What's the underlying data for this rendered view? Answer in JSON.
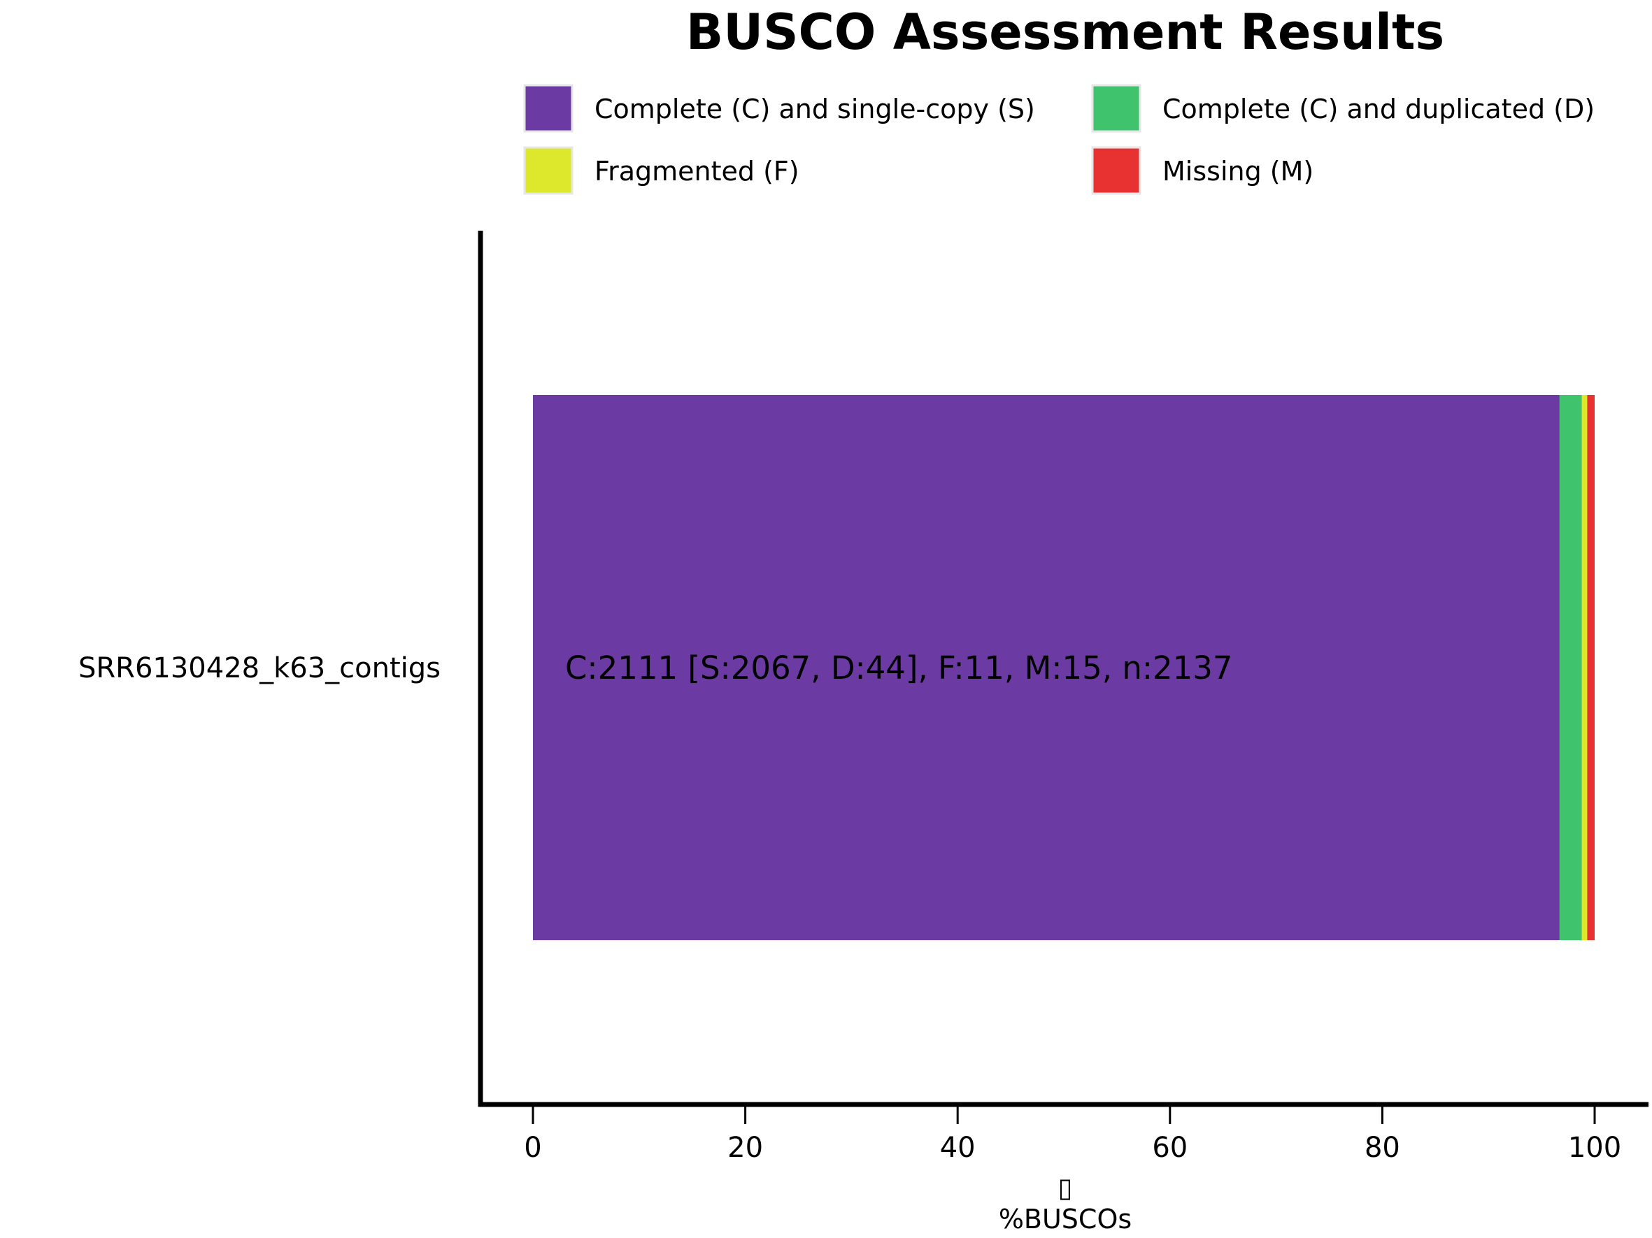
{
  "chart_data": {
    "type": "bar",
    "orientation": "horizontal",
    "stacked": true,
    "title": "BUSCO Assessment Results",
    "xlabel_glyph": "▯",
    "xlabel": "%BUSCOs",
    "ylabel": "",
    "xlim": [
      0,
      100
    ],
    "xticks": [
      0,
      20,
      40,
      60,
      80,
      100
    ],
    "grid": false,
    "legend_placement": "top",
    "categories": [
      "SRR6130428_k63_contigs"
    ],
    "bar_labels": [
      "C:2111 [S:2067, D:44], F:11, M:15, n:2137"
    ],
    "series": [
      {
        "name": "Complete (C) and single-copy (S)",
        "color": "#6b3ba3",
        "values": [
          96.7
        ]
      },
      {
        "name": "Complete (C) and duplicated (D)",
        "color": "#3fc46d",
        "values": [
          2.1
        ]
      },
      {
        "name": "Fragmented (F)",
        "color": "#dde82c",
        "values": [
          0.5
        ]
      },
      {
        "name": "Missing (M)",
        "color": "#e83232",
        "values": [
          0.7
        ]
      }
    ]
  }
}
